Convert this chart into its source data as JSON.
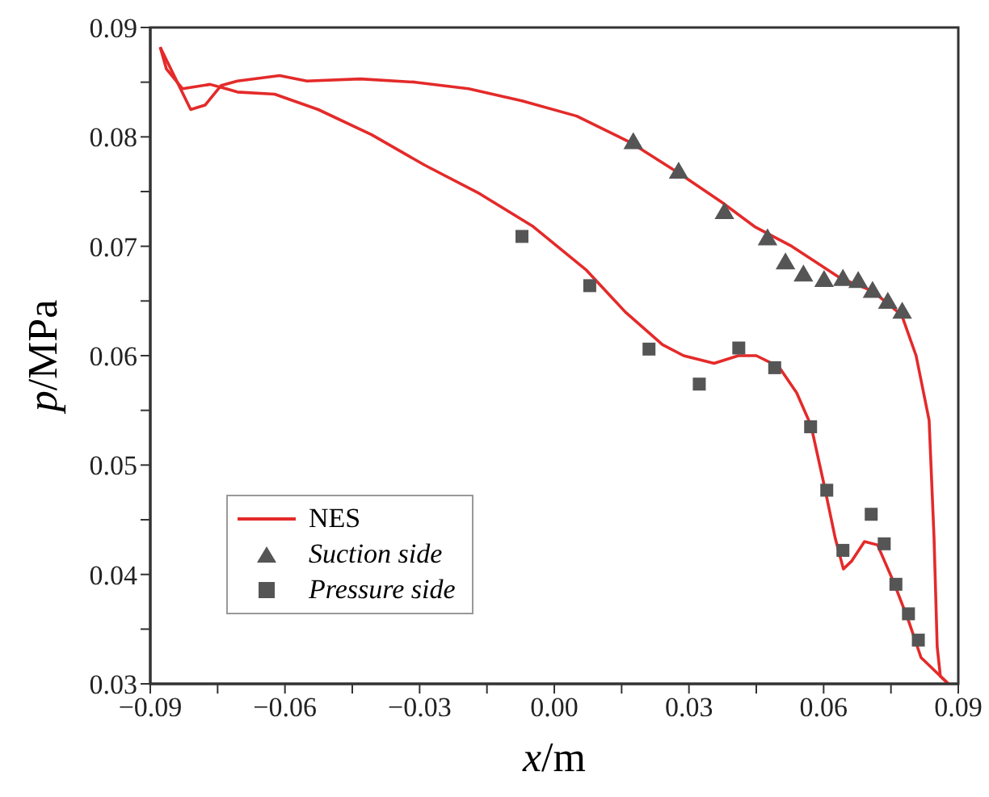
{
  "chart_data": {
    "type": "line",
    "xlabel": "x/m",
    "ylabel": "p/MPa",
    "xlim": [
      -0.09,
      0.09
    ],
    "xticks": [
      {
        "value": -0.09,
        "label": "−0.09"
      },
      {
        "value": -0.075,
        "label": null
      },
      {
        "value": -0.06,
        "label": "−0.06"
      },
      {
        "value": -0.045,
        "label": null
      },
      {
        "value": -0.03,
        "label": "−0.03"
      },
      {
        "value": -0.015,
        "label": null
      },
      {
        "value": 0,
        "label": "0.00"
      },
      {
        "value": 0.015,
        "label": null
      },
      0.03,
      {
        "value": 0.045,
        "label": null
      },
      0.06,
      {
        "value": 0.075,
        "label": null
      },
      0.09
    ],
    "ylim": [
      0.03,
      0.09
    ],
    "yticks": [
      0.03,
      {
        "value": 0.035,
        "label": null
      },
      0.04,
      {
        "value": 0.045,
        "label": null
      },
      0.05,
      {
        "value": 0.055,
        "label": null
      },
      0.06,
      {
        "value": 0.065,
        "label": null
      },
      0.07,
      {
        "value": 0.075,
        "label": null
      },
      0.08,
      {
        "value": 0.085,
        "label": null
      },
      0.09
    ],
    "grid": false,
    "legend": "bottom left",
    "series": [
      {
        "name": "NES",
        "color": "#e42a2a",
        "marker": "none",
        "line_style": "solid",
        "x": [
          -0.0878,
          -0.081,
          -0.0778,
          -0.0742,
          -0.0706,
          -0.0612,
          -0.0551,
          -0.0432,
          -0.031,
          -0.0191,
          -0.0072,
          0.005,
          0.0169,
          0.0277,
          0.0374,
          0.0446,
          0.0529,
          0.0637,
          0.0709,
          0.0774,
          0.0806,
          0.0835,
          0.0846,
          0.0853,
          0.086,
          0.0878
        ],
        "values": [
          0.0882,
          0.0825,
          0.0829,
          0.0847,
          0.0851,
          0.0856,
          0.0851,
          0.0853,
          0.085,
          0.0844,
          0.0833,
          0.0819,
          0.0795,
          0.0767,
          0.074,
          0.0718,
          0.07,
          0.0671,
          0.0659,
          0.0637,
          0.06,
          0.0541,
          0.0433,
          0.0334,
          0.0307,
          0.03
        ]
      },
      {
        "color": "#e42a2a",
        "marker": "none",
        "line_style": "solid",
        "x": [
          -0.0878,
          -0.0864,
          -0.0828,
          -0.0767,
          -0.0731,
          -0.0706,
          -0.0623,
          -0.0526,
          -0.0407,
          -0.0288,
          -0.0166,
          -0.0047,
          0.0072,
          0.0158,
          0.0241,
          0.0288,
          0.0356,
          0.041,
          0.045,
          0.05,
          0.054,
          0.0572,
          0.0601,
          0.0626,
          0.0644,
          0.0662,
          0.0691,
          0.072,
          0.0756,
          0.0788,
          0.0817,
          0.0878
        ],
        "values": [
          0.0882,
          0.0862,
          0.0844,
          0.0848,
          0.0844,
          0.0841,
          0.0839,
          0.0825,
          0.0802,
          0.0774,
          0.0748,
          0.0718,
          0.0678,
          0.064,
          0.061,
          0.06,
          0.0593,
          0.06,
          0.06,
          0.059,
          0.0566,
          0.0536,
          0.0482,
          0.0433,
          0.0405,
          0.0412,
          0.043,
          0.0427,
          0.0393,
          0.0359,
          0.0324,
          0.03
        ]
      },
      {
        "name": "Suction side",
        "type": "scatter",
        "color": "#555555",
        "marker": "triangle",
        "x": [
          0.0176,
          0.0277,
          0.0379,
          0.0475,
          0.0515,
          0.0555,
          0.0601,
          0.0643,
          0.0677,
          0.0709,
          0.0743,
          0.0775
        ],
        "values": [
          0.0794,
          0.0767,
          0.073,
          0.0706,
          0.0684,
          0.0673,
          0.0668,
          0.0669,
          0.0667,
          0.0658,
          0.0648,
          0.0639
        ]
      },
      {
        "name": "Pressure side",
        "type": "scatter",
        "color": "#555555",
        "marker": "square",
        "x": [
          -0.0072,
          0.0079,
          0.0211,
          0.0323,
          0.0411,
          0.0491,
          0.0571,
          0.0607,
          0.0643,
          0.0706,
          0.0735,
          0.0761,
          0.0789,
          0.0811
        ],
        "values": [
          0.0709,
          0.0664,
          0.0606,
          0.0574,
          0.0607,
          0.0589,
          0.0535,
          0.0477,
          0.0422,
          0.0455,
          0.0428,
          0.0391,
          0.0364,
          0.034
        ]
      }
    ]
  }
}
